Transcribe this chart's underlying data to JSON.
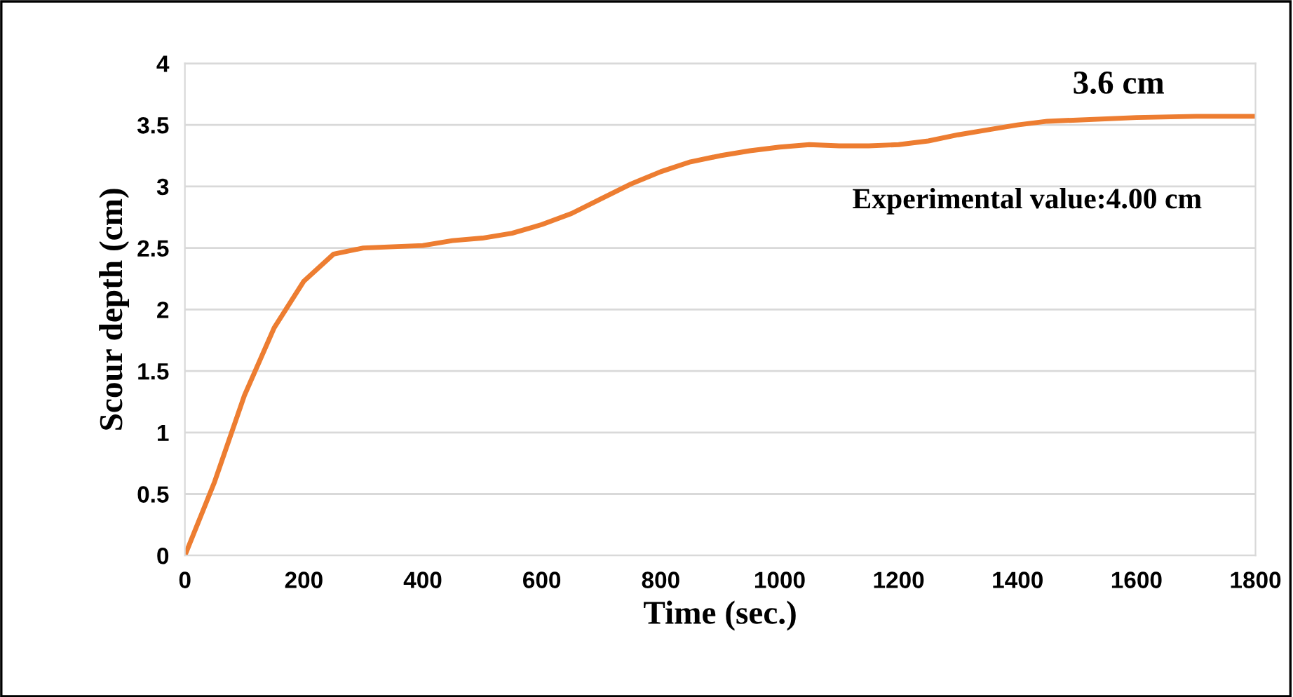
{
  "chart_data": {
    "type": "line",
    "xlabel": "Time (sec.)",
    "ylabel": "Scour depth (cm)",
    "x": [
      0,
      50,
      100,
      150,
      200,
      250,
      300,
      350,
      400,
      450,
      500,
      550,
      600,
      650,
      700,
      750,
      800,
      850,
      900,
      950,
      1000,
      1050,
      1100,
      1150,
      1200,
      1250,
      1300,
      1350,
      1400,
      1450,
      1500,
      1600,
      1700,
      1800
    ],
    "series": [
      {
        "color": "#ed7d31",
        "values": [
          0,
          0.6,
          1.3,
          1.85,
          2.23,
          2.45,
          2.5,
          2.51,
          2.52,
          2.56,
          2.58,
          2.62,
          2.69,
          2.78,
          2.9,
          3.02,
          3.12,
          3.2,
          3.25,
          3.29,
          3.32,
          3.34,
          3.33,
          3.33,
          3.34,
          3.37,
          3.42,
          3.46,
          3.5,
          3.53,
          3.54,
          3.56,
          3.57,
          3.57
        ]
      }
    ],
    "xlim": [
      0,
      1800
    ],
    "xticks": [
      0,
      200,
      400,
      600,
      800,
      1000,
      1200,
      1400,
      1600,
      1800
    ],
    "ylim": [
      0,
      4
    ],
    "yticks": [
      0,
      0.5,
      1,
      1.5,
      2,
      2.5,
      3,
      3.5,
      4
    ],
    "grid": "y",
    "marker": "none",
    "line_style": "solid",
    "annotations": [
      "3.6 cm",
      "Experimental value:4.00 cm"
    ]
  }
}
